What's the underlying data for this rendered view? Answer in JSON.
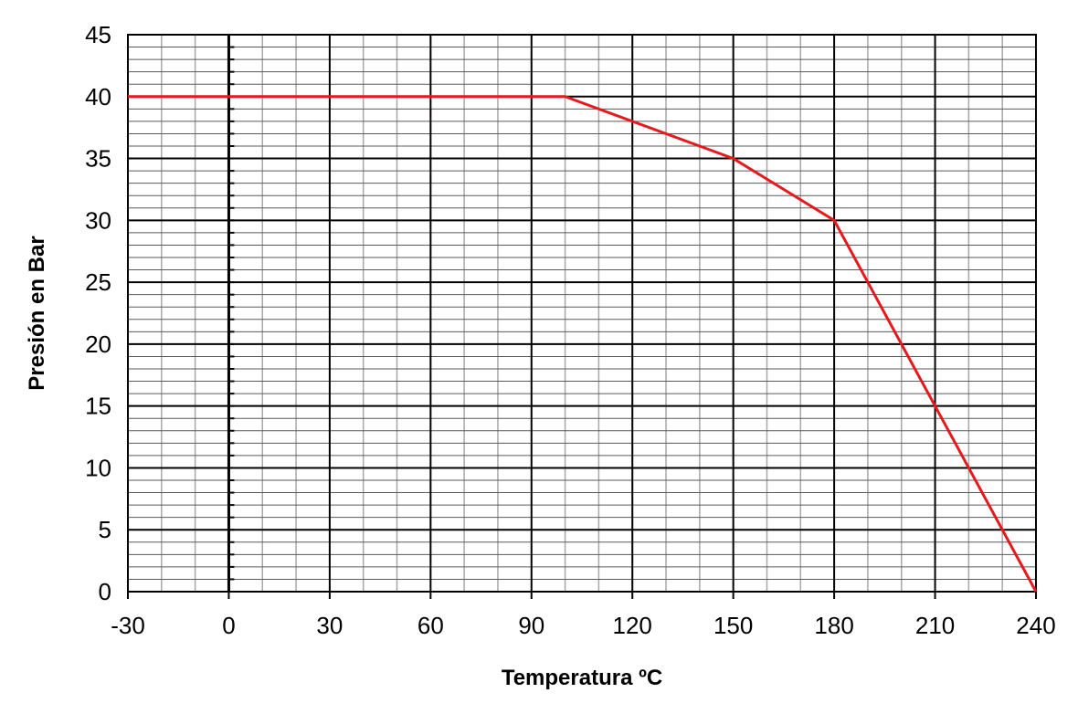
{
  "chart_data": {
    "type": "line",
    "xlabel": "Temperatura ºC",
    "ylabel": "Presión en Bar",
    "xlim": [
      -30,
      240
    ],
    "ylim": [
      0,
      45
    ],
    "x_ticks": [
      -30,
      0,
      30,
      60,
      90,
      120,
      150,
      180,
      210,
      240
    ],
    "y_ticks": [
      0,
      5,
      10,
      15,
      20,
      25,
      30,
      35,
      40,
      45
    ],
    "x_minor_step": 10,
    "y_minor_step": 1,
    "grid": true,
    "series": [
      {
        "color": "#e41a1c",
        "points": [
          {
            "x": -30,
            "y": 40
          },
          {
            "x": 100,
            "y": 40
          },
          {
            "x": 150,
            "y": 35
          },
          {
            "x": 180,
            "y": 30
          },
          {
            "x": 210,
            "y": 15
          },
          {
            "x": 240,
            "y": 0
          }
        ]
      }
    ]
  }
}
